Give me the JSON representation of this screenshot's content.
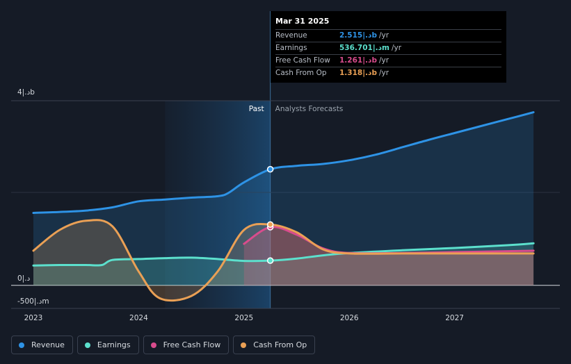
{
  "chart_data": {
    "type": "line",
    "y_axis": {
      "ticks": [
        {
          "value": 4000000000,
          "label": "4|.دb"
        },
        {
          "value": 0,
          "label": "0|.د"
        },
        {
          "value": -500000000,
          "label": "-500|.دm"
        }
      ],
      "ylim": [
        -500000000,
        4000000000
      ]
    },
    "x_axis": {
      "ticks": [
        {
          "value": 2023.0,
          "label": "2023"
        },
        {
          "value": 2024.0,
          "label": "2024"
        },
        {
          "value": 2025.0,
          "label": "2025"
        },
        {
          "value": 2026.0,
          "label": "2026"
        },
        {
          "value": 2027.0,
          "label": "2027"
        }
      ],
      "xlim": [
        2022.75,
        2027.75
      ]
    },
    "past_label": "Past",
    "forecast_label": "Analysts Forecasts",
    "forecast_start": 2025.25,
    "highlight_start": 2024.25,
    "series": [
      {
        "name": "Revenue",
        "color": "#2e93e6",
        "fill": true,
        "points": [
          [
            2023.0,
            1570000000
          ],
          [
            2023.25,
            1590000000
          ],
          [
            2023.5,
            1620000000
          ],
          [
            2023.75,
            1690000000
          ],
          [
            2024.0,
            1820000000
          ],
          [
            2024.25,
            1860000000
          ],
          [
            2024.5,
            1900000000
          ],
          [
            2024.75,
            1930000000
          ],
          [
            2024.85,
            2000000000
          ],
          [
            2025.0,
            2230000000
          ],
          [
            2025.25,
            2515000000
          ],
          [
            2025.5,
            2590000000
          ],
          [
            2025.75,
            2630000000
          ],
          [
            2026.0,
            2710000000
          ],
          [
            2026.25,
            2830000000
          ],
          [
            2026.5,
            2990000000
          ],
          [
            2026.75,
            3150000000
          ],
          [
            2027.0,
            3300000000
          ],
          [
            2027.25,
            3450000000
          ],
          [
            2027.5,
            3600000000
          ],
          [
            2027.75,
            3750000000
          ]
        ]
      },
      {
        "name": "Earnings",
        "color": "#5ce0cd",
        "fill": true,
        "points": [
          [
            2023.0,
            430000000
          ],
          [
            2023.25,
            440000000
          ],
          [
            2023.5,
            440000000
          ],
          [
            2023.65,
            440000000
          ],
          [
            2023.75,
            550000000
          ],
          [
            2024.0,
            570000000
          ],
          [
            2024.25,
            590000000
          ],
          [
            2024.5,
            600000000
          ],
          [
            2024.75,
            570000000
          ],
          [
            2025.0,
            530000000
          ],
          [
            2025.25,
            536701000
          ],
          [
            2025.5,
            580000000
          ],
          [
            2025.75,
            650000000
          ],
          [
            2026.0,
            700000000
          ],
          [
            2026.5,
            760000000
          ],
          [
            2027.0,
            810000000
          ],
          [
            2027.5,
            870000000
          ],
          [
            2027.75,
            910000000
          ]
        ]
      },
      {
        "name": "Free Cash Flow",
        "color": "#d94c8d",
        "fill": true,
        "points": [
          [
            2025.0,
            900000000
          ],
          [
            2025.25,
            1261000000
          ],
          [
            2025.5,
            1100000000
          ],
          [
            2025.75,
            800000000
          ],
          [
            2026.0,
            700000000
          ],
          [
            2026.5,
            700000000
          ],
          [
            2027.0,
            720000000
          ],
          [
            2027.5,
            740000000
          ],
          [
            2027.75,
            750000000
          ]
        ]
      },
      {
        "name": "Cash From Op",
        "color": "#eaa055",
        "fill": true,
        "points": [
          [
            2023.0,
            750000000
          ],
          [
            2023.25,
            1200000000
          ],
          [
            2023.5,
            1400000000
          ],
          [
            2023.75,
            1280000000
          ],
          [
            2024.0,
            300000000
          ],
          [
            2024.2,
            -280000000
          ],
          [
            2024.5,
            -230000000
          ],
          [
            2024.75,
            300000000
          ],
          [
            2025.0,
            1200000000
          ],
          [
            2025.25,
            1318000000
          ],
          [
            2025.5,
            1150000000
          ],
          [
            2025.75,
            780000000
          ],
          [
            2026.0,
            690000000
          ],
          [
            2026.5,
            690000000
          ],
          [
            2027.0,
            690000000
          ],
          [
            2027.5,
            690000000
          ],
          [
            2027.75,
            690000000
          ]
        ]
      }
    ],
    "highlight_markers": [
      {
        "series": "Revenue",
        "x": 2025.25,
        "y": 2515000000
      },
      {
        "series": "Earnings",
        "x": 2025.25,
        "y": 536701000
      },
      {
        "series": "Free Cash Flow",
        "x": 2025.25,
        "y": 1261000000
      },
      {
        "series": "Cash From Op",
        "x": 2025.25,
        "y": 1318000000
      }
    ]
  },
  "tooltip": {
    "date": "Mar 31 2025",
    "rows": [
      {
        "label": "Revenue",
        "value": "2.515|.دb",
        "unit": "/yr",
        "color": "#2e93e6"
      },
      {
        "label": "Earnings",
        "value": "536.701|.دm",
        "unit": "/yr",
        "color": "#5ce0cd"
      },
      {
        "label": "Free Cash Flow",
        "value": "1.261|.دb",
        "unit": "/yr",
        "color": "#d94c8d"
      },
      {
        "label": "Cash From Op",
        "value": "1.318|.دb",
        "unit": "/yr",
        "color": "#eaa055"
      }
    ]
  },
  "legend": [
    {
      "label": "Revenue",
      "color": "#2e93e6"
    },
    {
      "label": "Earnings",
      "color": "#5ce0cd"
    },
    {
      "label": "Free Cash Flow",
      "color": "#d94c8d"
    },
    {
      "label": "Cash From Op",
      "color": "#eaa055"
    }
  ]
}
